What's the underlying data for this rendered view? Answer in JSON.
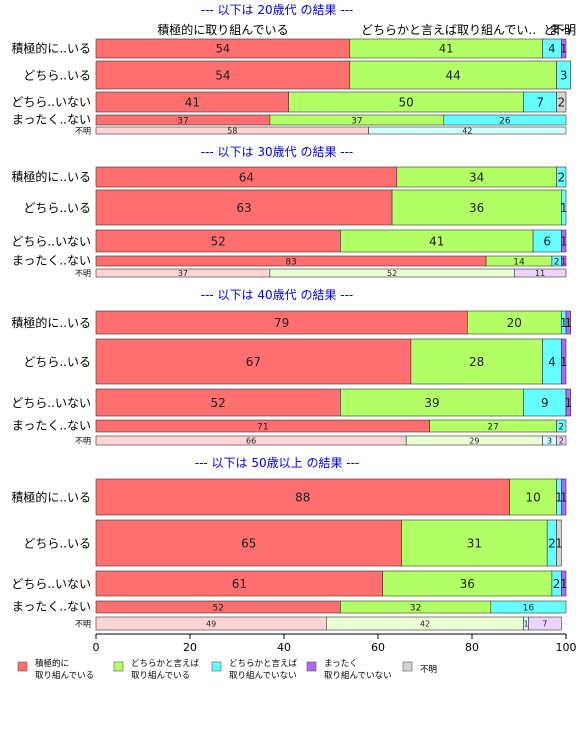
{
  "chart_data": {
    "type": "bar",
    "orientation": "horizontal",
    "stacked": true,
    "xlim": [
      0,
      100
    ],
    "x_ticks": [
      "0",
      "20",
      "40",
      "60",
      "80",
      "100"
    ],
    "top_headers": [
      {
        "label": "積極的に取り組んでいる",
        "x": 27
      },
      {
        "label": "どちらかと言えば取り組んでい..",
        "x": 75
      },
      {
        "label": "ど",
        "x": 96.5
      },
      {
        "label": "まっ",
        "x": 98.8
      },
      {
        "label": "不明",
        "x": 99.6
      }
    ],
    "legend": [
      {
        "name": "積極的に\n取り組んでいる",
        "color": "#ff6f6f"
      },
      {
        "name": "どちらかと言えば\n取り組んでいる",
        "color": "#b2ff66"
      },
      {
        "name": "どちらかと言えば\n取り組んでいない",
        "color": "#66ffff"
      },
      {
        "name": "まったく\n取り組んでいない",
        "color": "#b266ff"
      },
      {
        "name": "不明",
        "color": "#d4d4d4"
      }
    ],
    "panels": [
      {
        "title": "--- 以下は 20歳代 の結果 ---",
        "rows": [
          {
            "label": "積極的に..いる",
            "values": [
              54,
              41,
              4,
              1,
              0
            ],
            "labels": [
              "54",
              "41",
              "4",
              "1",
              ""
            ]
          },
          {
            "label": "どちら..いる",
            "values": [
              54,
              44,
              3,
              0,
              0
            ],
            "labels": [
              "54",
              "44",
              "3",
              "",
              ""
            ]
          },
          {
            "label": "どちら..いない",
            "values": [
              41,
              50,
              7,
              0,
              2
            ],
            "labels": [
              "41",
              "50",
              "7",
              "",
              "2"
            ]
          },
          {
            "label": "まったく..ない",
            "values": [
              37,
              37,
              26,
              0,
              0
            ],
            "labels": [
              "37",
              "37",
              "26",
              "",
              ""
            ]
          },
          {
            "label": "不明",
            "values": [
              58,
              0,
              42,
              0,
              0
            ],
            "labels": [
              "58",
              "",
              "42",
              "",
              ""
            ]
          }
        ]
      },
      {
        "title": "--- 以下は 30歳代 の結果 ---",
        "rows": [
          {
            "label": "積極的に..いる",
            "values": [
              64,
              34,
              2,
              0,
              0
            ],
            "labels": [
              "64",
              "34",
              "2",
              "",
              ""
            ]
          },
          {
            "label": "どちら..いる",
            "values": [
              63,
              36,
              1,
              0,
              0
            ],
            "labels": [
              "63",
              "36",
              "1",
              "",
              ""
            ]
          },
          {
            "label": "どちら..いない",
            "values": [
              52,
              41,
              6,
              1,
              0
            ],
            "labels": [
              "52",
              "41",
              "6",
              "1",
              ""
            ]
          },
          {
            "label": "まったく..ない",
            "values": [
              83,
              14,
              2,
              1,
              0
            ],
            "labels": [
              "83",
              "14",
              "2",
              "1",
              ""
            ]
          },
          {
            "label": "不明",
            "values": [
              37,
              52,
              0,
              11,
              0
            ],
            "labels": [
              "37",
              "52",
              "",
              "11",
              ""
            ]
          }
        ]
      },
      {
        "title": "--- 以下は 40歳代 の結果 ---",
        "rows": [
          {
            "label": "積極的に..いる",
            "values": [
              79,
              20,
              1,
              1,
              0
            ],
            "labels": [
              "79",
              "20",
              "1",
              "1",
              ""
            ]
          },
          {
            "label": "どちら..いる",
            "values": [
              67,
              28,
              4,
              1,
              0
            ],
            "labels": [
              "67",
              "28",
              "4",
              "1",
              ""
            ]
          },
          {
            "label": "どちら..いない",
            "values": [
              52,
              39,
              9,
              1,
              0
            ],
            "labels": [
              "52",
              "39",
              "9",
              "1",
              ""
            ]
          },
          {
            "label": "まったく..ない",
            "values": [
              71,
              27,
              2,
              0,
              0
            ],
            "labels": [
              "71",
              "27",
              "2",
              "",
              ""
            ]
          },
          {
            "label": "不明",
            "values": [
              66,
              29,
              3,
              2,
              0
            ],
            "labels": [
              "66",
              "29",
              "3",
              "2",
              ""
            ]
          }
        ]
      },
      {
        "title": "--- 以下は 50歳以上 の結果 ---",
        "rows": [
          {
            "label": "積極的に..いる",
            "values": [
              88,
              10,
              1,
              1,
              0
            ],
            "labels": [
              "88",
              "10",
              "1",
              "1",
              ""
            ]
          },
          {
            "label": "どちら..いる",
            "values": [
              65,
              31,
              2,
              0,
              1
            ],
            "labels": [
              "65",
              "31",
              "2",
              "",
              "1"
            ]
          },
          {
            "label": "どちら..いない",
            "values": [
              61,
              36,
              2,
              1,
              0
            ],
            "labels": [
              "61",
              "36",
              "2",
              "1",
              ""
            ]
          },
          {
            "label": "まったく..ない",
            "values": [
              52,
              32,
              16,
              0,
              0
            ],
            "labels": [
              "52",
              "32",
              "16",
              "",
              ""
            ]
          },
          {
            "label": "不明",
            "values": [
              49,
              42,
              1,
              7,
              0
            ],
            "labels": [
              "49",
              "42",
              "1",
              "7",
              ""
            ]
          }
        ]
      }
    ]
  }
}
